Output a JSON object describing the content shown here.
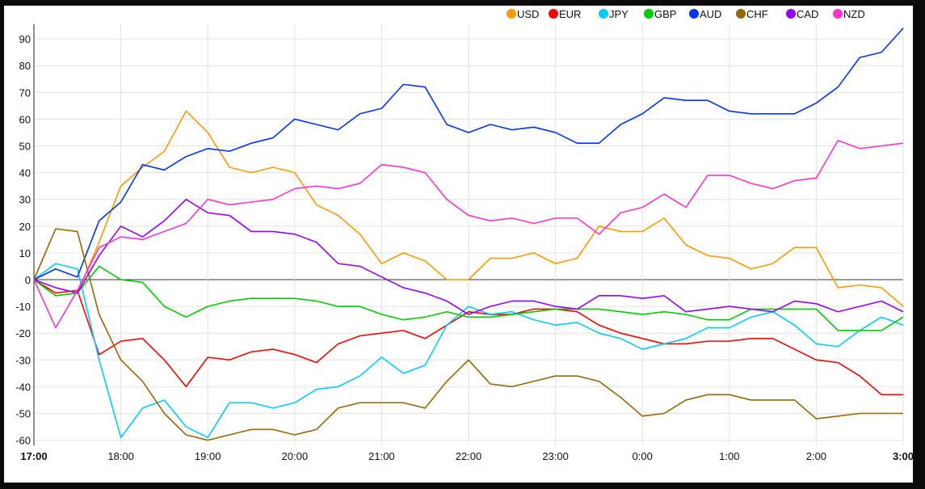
{
  "chart_data": {
    "type": "line",
    "title": "",
    "xlabel": "",
    "ylabel": "",
    "x_tick_labels": [
      "17:00",
      "18:00",
      "19:00",
      "20:00",
      "21:00",
      "22:00",
      "23:00",
      "0:00",
      "1:00",
      "2:00",
      "3:00"
    ],
    "bold_x_ticks": [
      "17:00",
      "3:00"
    ],
    "y_ticks": [
      90,
      80,
      70,
      60,
      50,
      40,
      30,
      20,
      10,
      0,
      -10,
      -20,
      -30,
      -40,
      -50,
      -60
    ],
    "ylim": [
      -62,
      95
    ],
    "x_hours_from_start": [
      0,
      0.25,
      0.5,
      0.75,
      1,
      1.25,
      1.5,
      1.75,
      2,
      2.25,
      2.5,
      2.75,
      3,
      3.25,
      3.5,
      3.75,
      4,
      4.25,
      4.5,
      4.75,
      5,
      5.25,
      5.5,
      5.75,
      6,
      6.25,
      6.5,
      6.75,
      7,
      7.25,
      7.5,
      7.75,
      8,
      8.25,
      8.5,
      8.75,
      9,
      9.25,
      9.5,
      9.75,
      10
    ],
    "grid": true,
    "legend_position": "top-right",
    "series": [
      {
        "name": "USD",
        "color": "#ff9900",
        "values": [
          0,
          -6,
          -5,
          14,
          35,
          42,
          48,
          63,
          55,
          42,
          40,
          42,
          40,
          28,
          24,
          17,
          6,
          10,
          7,
          0,
          0,
          8,
          8,
          10,
          6,
          8,
          20,
          18,
          18,
          23,
          13,
          9,
          8,
          4,
          6,
          12,
          12,
          -3,
          -2,
          -3,
          -10
        ]
      },
      {
        "name": "EUR",
        "color": "#ff0000",
        "values": [
          0,
          -5,
          -4,
          -28,
          -23,
          -22,
          -30,
          -40,
          -29,
          -30,
          -27,
          -26,
          -28,
          -31,
          -24,
          -21,
          -20,
          -19,
          -22,
          -17,
          -12,
          -13,
          -13,
          -11,
          -11,
          -12,
          -17,
          -20,
          -22,
          -24,
          -24,
          -23,
          -23,
          -22,
          -22,
          -26,
          -30,
          -31,
          -36,
          -43,
          -43
        ]
      },
      {
        "name": "JPY",
        "color": "#00ccff",
        "values": [
          0,
          6,
          4,
          -30,
          -59,
          -48,
          -45,
          -55,
          -59,
          -46,
          -46,
          -48,
          -46,
          -41,
          -40,
          -36,
          -29,
          -35,
          -32,
          -17,
          -10,
          -13,
          -12,
          -15,
          -17,
          -16,
          -20,
          -22,
          -26,
          -24,
          -22,
          -18,
          -18,
          -14,
          -12,
          -17,
          -24,
          -25,
          -19,
          -14,
          -17
        ]
      },
      {
        "name": "GBP",
        "color": "#00cc00",
        "values": [
          0,
          -6,
          -5,
          5,
          0,
          -1,
          -10,
          -14,
          -10,
          -8,
          -7,
          -7,
          -7,
          -8,
          -10,
          -10,
          -13,
          -15,
          -14,
          -12,
          -14,
          -14,
          -13,
          -12,
          -11,
          -11,
          -11,
          -12,
          -13,
          -12,
          -13,
          -15,
          -15,
          -11,
          -11,
          -11,
          -11,
          -19,
          -19,
          -19,
          -14
        ]
      },
      {
        "name": "AUD",
        "color": "#0033ff",
        "values": [
          0,
          4,
          1,
          22,
          29,
          43,
          41,
          46,
          49,
          48,
          51,
          53,
          60,
          58,
          56,
          62,
          64,
          73,
          72,
          58,
          55,
          58,
          56,
          57,
          55,
          51,
          51,
          58,
          62,
          68,
          67,
          67,
          63,
          62,
          62,
          62,
          66,
          72,
          83,
          85,
          94
        ]
      },
      {
        "name": "CHF",
        "color": "#996600",
        "values": [
          0,
          19,
          18,
          -13,
          -30,
          -38,
          -50,
          -58,
          -60,
          -58,
          -56,
          -56,
          -58,
          -56,
          -48,
          -46,
          -46,
          -46,
          -48,
          -38,
          -30,
          -39,
          -40,
          -38,
          -36,
          -36,
          -38,
          -44,
          -51,
          -50,
          -45,
          -43,
          -43,
          -45,
          -45,
          -45,
          -52,
          -51,
          -50,
          -50,
          -50
        ]
      },
      {
        "name": "CAD",
        "color": "#9900ff",
        "values": [
          0,
          -3,
          -5,
          9,
          20,
          16,
          22,
          30,
          25,
          24,
          18,
          18,
          17,
          14,
          6,
          5,
          1,
          -3,
          -5,
          -8,
          -13,
          -10,
          -8,
          -8,
          -10,
          -11,
          -6,
          -6,
          -7,
          -6,
          -12,
          -11,
          -10,
          -11,
          -12,
          -8,
          -9,
          -12,
          -10,
          -8,
          -12
        ]
      },
      {
        "name": "NZD",
        "color": "#ff33cc",
        "values": [
          0,
          -18,
          -4,
          12,
          16,
          15,
          18,
          21,
          30,
          28,
          29,
          30,
          34,
          35,
          34,
          36,
          43,
          42,
          40,
          30,
          24,
          22,
          23,
          21,
          23,
          23,
          17,
          25,
          27,
          32,
          27,
          39,
          39,
          36,
          34,
          37,
          38,
          52,
          49,
          50,
          51
        ]
      }
    ]
  }
}
